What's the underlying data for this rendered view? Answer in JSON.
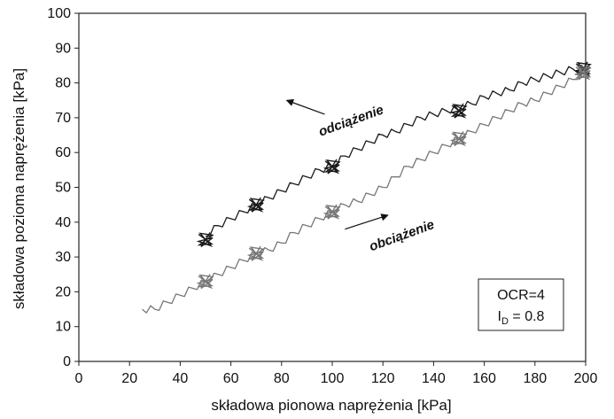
{
  "chart_data": {
    "type": "line",
    "title": "",
    "xlabel": "składowa pionowa naprężenia [kPa]",
    "ylabel": "składowa pozioma naprężenia [kPa]",
    "xlim": [
      0,
      200
    ],
    "ylim": [
      0,
      100
    ],
    "xticks": [
      0,
      20,
      40,
      60,
      80,
      100,
      120,
      140,
      160,
      180,
      200
    ],
    "yticks": [
      0,
      10,
      20,
      30,
      40,
      50,
      60,
      70,
      80,
      90,
      100
    ],
    "grid": false,
    "series": [
      {
        "color": "#1a1a1a",
        "x": [
          50,
          55,
          60,
          65,
          70,
          75,
          80,
          85,
          90,
          95,
          100,
          105,
          110,
          115,
          120,
          125,
          130,
          135,
          140,
          145,
          150,
          155,
          160,
          165,
          170,
          175,
          180,
          185,
          190,
          195,
          200
        ],
        "y": [
          36,
          39,
          41,
          43,
          45,
          47,
          49,
          51,
          53,
          55,
          56,
          59,
          61,
          63,
          65,
          66,
          68,
          70,
          71,
          72,
          73,
          74,
          76,
          77,
          78,
          80,
          81,
          82,
          83,
          84,
          84
        ],
        "clusters": [
          [
            50,
            35
          ],
          [
            70,
            45
          ],
          [
            100,
            56
          ],
          [
            150,
            72
          ],
          [
            199,
            84
          ]
        ]
      },
      {
        "color": "#777777",
        "x": [
          25,
          30,
          35,
          40,
          45,
          50,
          55,
          60,
          65,
          70,
          75,
          80,
          85,
          90,
          95,
          100,
          105,
          110,
          115,
          120,
          125,
          130,
          135,
          140,
          145,
          150,
          155,
          160,
          165,
          170,
          175,
          180,
          185,
          190,
          195,
          200
        ],
        "y": [
          15,
          15,
          17,
          19,
          21,
          23,
          25,
          27,
          29,
          31,
          32,
          34,
          37,
          39,
          41,
          43,
          45,
          46,
          48,
          50,
          53,
          56,
          58,
          60,
          62,
          64,
          66,
          68,
          70,
          72,
          74,
          75,
          77,
          79,
          81,
          84
        ],
        "clusters": [
          [
            50,
            23
          ],
          [
            70,
            31
          ],
          [
            100,
            43
          ],
          [
            150,
            64
          ],
          [
            199,
            83
          ]
        ]
      }
    ],
    "annotations": [
      {
        "text": "odciążenie",
        "x": 108,
        "y": 68,
        "angle": -20,
        "arrow_from": [
          97,
          71
        ],
        "arrow_to": [
          82,
          75
        ]
      },
      {
        "text": "obciążenie",
        "x": 128,
        "y": 35,
        "angle": -20,
        "arrow_from": [
          105,
          38
        ],
        "arrow_to": [
          122,
          42
        ]
      }
    ],
    "legend_box": {
      "line1": "OCR=4",
      "line2_base": "I",
      "line2_sub": "D",
      "line2_value": " = 0.8",
      "position": "lower-right"
    }
  }
}
